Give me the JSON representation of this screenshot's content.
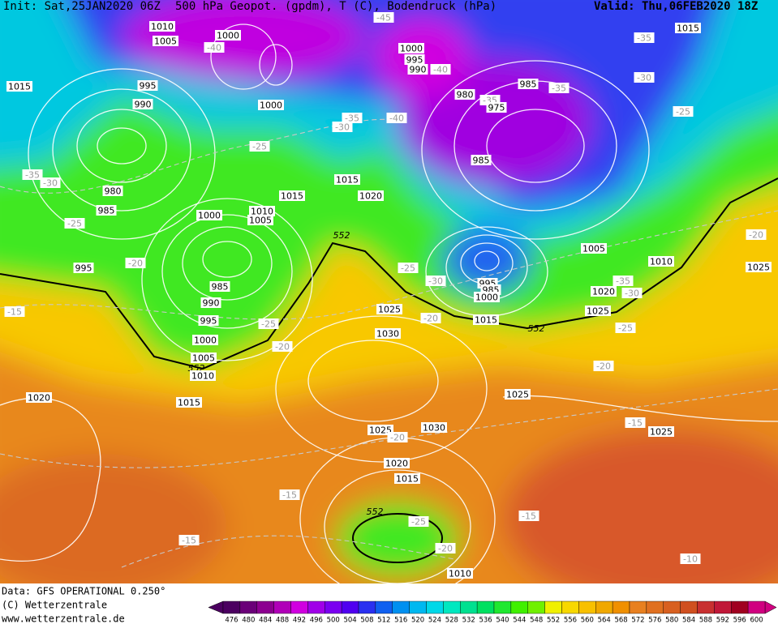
{
  "header": {
    "init": "Init: Sat,25JAN2020 06Z",
    "title": "500 hPa Geopot. (gpdm), T (C), Bodendruck (hPa)",
    "valid": "Valid: Thu,06FEB2020 18Z"
  },
  "footer": {
    "source": "Data: GFS OPERATIONAL 0.250°",
    "copyright": "(C) Wetterzentrale",
    "url": "www.wetterzentrale.de"
  },
  "legend": {
    "labels": [
      476,
      480,
      484,
      488,
      492,
      496,
      500,
      504,
      508,
      512,
      516,
      520,
      524,
      528,
      532,
      536,
      540,
      544,
      548,
      552,
      556,
      560,
      564,
      568,
      572,
      576,
      580,
      584,
      588,
      592,
      596,
      600
    ],
    "colors": [
      "#4b0060",
      "#6a0078",
      "#8c0090",
      "#b000b8",
      "#d000e0",
      "#a000e8",
      "#7a00f0",
      "#5000f0",
      "#2a30f0",
      "#1060f0",
      "#0090f0",
      "#00b8f0",
      "#00d8e8",
      "#00e8c0",
      "#00e090",
      "#00e060",
      "#20e830",
      "#40f000",
      "#70f000",
      "#f0f000",
      "#f8d800",
      "#f8c000",
      "#f0a800",
      "#f09000",
      "#e88020",
      "#e07020",
      "#d86020",
      "#d05020",
      "#c83030",
      "#c01838",
      "#a00020",
      "#d00080"
    ]
  },
  "map_labels": [
    "1010",
    "1005",
    "1000",
    "-40",
    "1015",
    "995",
    "990",
    "1000",
    "-35",
    "-30",
    "-25",
    "-35",
    "-30",
    "980",
    "985",
    "1000",
    "1010",
    "1005",
    "1015",
    "1015",
    "1020",
    "-25",
    "995",
    "-20",
    "552",
    "985",
    "990",
    "995",
    "1000",
    "1005",
    "552",
    "1010",
    "-25",
    "-20",
    "-15",
    "1020",
    "1015",
    "-45",
    "1000",
    "995",
    "990",
    "-40",
    "980",
    "-35",
    "975",
    "-40",
    "985",
    "985",
    "-35",
    "-35",
    "1015",
    "-30",
    "-25",
    "1005",
    "1010",
    "-20",
    "1025",
    "-25",
    "-30",
    "995",
    "985",
    "1000",
    "1020",
    "-35",
    "-30",
    "1025",
    "1025",
    "-20",
    "1015",
    "552",
    "-25",
    "1030",
    "-20",
    "1025",
    "1030",
    "1025",
    "-20",
    "-15",
    "1025",
    "1020",
    "1015",
    "-15",
    "552",
    "-25",
    "-15",
    "-15",
    "-20",
    "-10",
    "1010"
  ]
}
